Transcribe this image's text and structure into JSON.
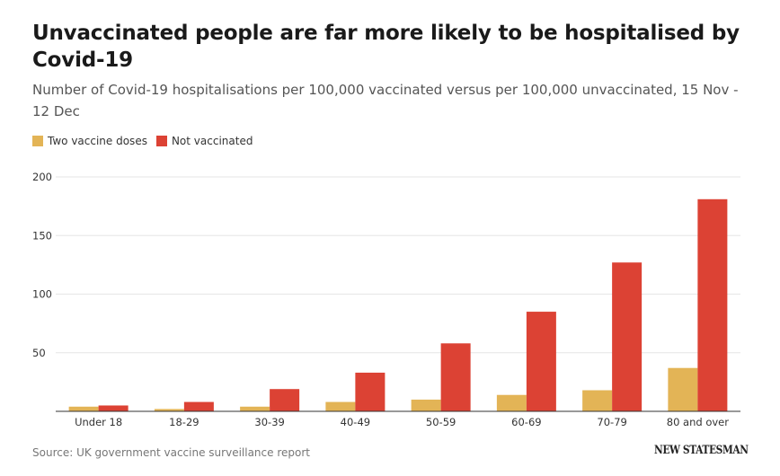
{
  "title": "Unvaccinated people are far more likely to be hospitalised by Covid-19",
  "subtitle": "Number of Covid-19 hospitalisations per 100,000 vaccinated versus per 100,000 unvaccinated, 15 Nov - 12 Dec",
  "source": "Source: UK government vaccine surveillance report",
  "logo_text": "NEW STATESMAN",
  "colors": {
    "vaccinated": "#e3b456",
    "unvaccinated": "#dc4234",
    "grid": "#e6e6e6"
  },
  "chart_data": {
    "type": "bar",
    "categories": [
      "Under 18",
      "18-29",
      "30-39",
      "40-49",
      "50-59",
      "60-69",
      "70-79",
      "80 and over"
    ],
    "series": [
      {
        "name": "Two vaccine doses",
        "values": [
          4,
          2,
          4,
          8,
          10,
          14,
          18,
          37
        ]
      },
      {
        "name": "Not vaccinated",
        "values": [
          5,
          8,
          19,
          33,
          58,
          85,
          127,
          181
        ]
      }
    ],
    "ylim": [
      0,
      200
    ],
    "yticks": [
      50,
      100,
      150,
      200
    ],
    "xlabel": "",
    "ylabel": "",
    "grid": true,
    "legend": "top-left"
  }
}
